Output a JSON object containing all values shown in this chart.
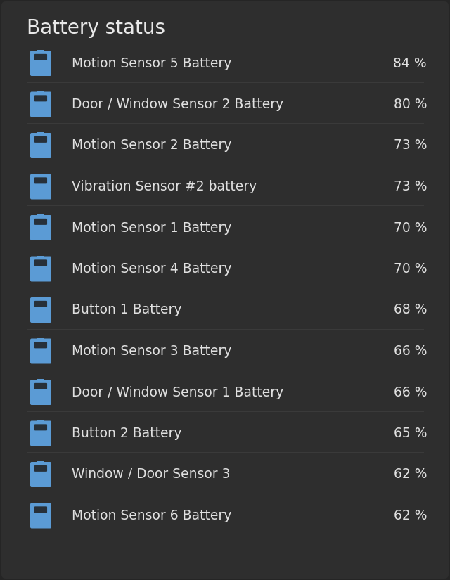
{
  "title": "Battery status",
  "background_color": "#252525",
  "card_color": "#2e2e2e",
  "title_color": "#e8e8e8",
  "item_label_color": "#e0e0e0",
  "item_value_color": "#e0e0e0",
  "icon_color": "#5b9bd5",
  "icon_notch_color": "#1e1e1e",
  "separator_color": "#3a3a3a",
  "title_fontsize": 20,
  "item_fontsize": 13.5,
  "items": [
    {
      "label": "Motion Sensor 5 Battery",
      "value": "84 %"
    },
    {
      "label": "Door / Window Sensor 2 Battery",
      "value": "80 %"
    },
    {
      "label": "Motion Sensor 2 Battery",
      "value": "73 %"
    },
    {
      "label": "Vibration Sensor #2 battery",
      "value": "73 %"
    },
    {
      "label": "Motion Sensor 1 Battery",
      "value": "70 %"
    },
    {
      "label": "Motion Sensor 4 Battery",
      "value": "70 %"
    },
    {
      "label": "Button 1 Battery",
      "value": "68 %"
    },
    {
      "label": "Motion Sensor 3 Battery",
      "value": "66 %"
    },
    {
      "label": "Door / Window Sensor 1 Battery",
      "value": "66 %"
    },
    {
      "label": "Button 2 Battery",
      "value": "65 %"
    },
    {
      "label": "Window / Door Sensor 3",
      "value": "62 %"
    },
    {
      "label": "Motion Sensor 6 Battery",
      "value": "62 %"
    }
  ]
}
